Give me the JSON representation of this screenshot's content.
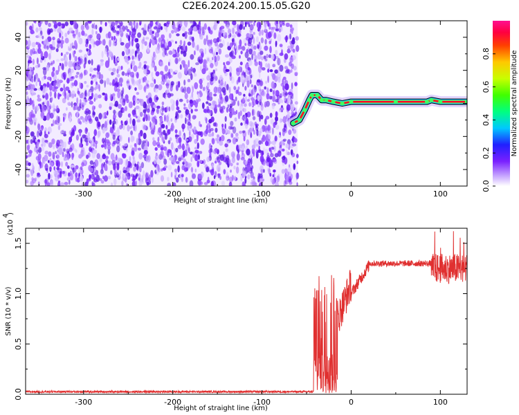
{
  "title": "C2E6.2024.200.15.05.G20",
  "chart_data": [
    {
      "type": "heatmap",
      "name": "spectrogram",
      "xlabel": "Height of straight line (km)",
      "ylabel": "Frequency (Hz)",
      "xlim": [
        -365,
        130
      ],
      "ylim": [
        -50,
        50
      ],
      "xticks": [
        -300,
        -200,
        -100,
        0,
        100
      ],
      "yticks": [
        -40,
        -20,
        0,
        20,
        40
      ],
      "noise_region_x": [
        -365,
        -60
      ],
      "signal_trace": [
        {
          "x": -65,
          "y": -12
        },
        {
          "x": -58,
          "y": -10
        },
        {
          "x": -52,
          "y": -4
        },
        {
          "x": -47,
          "y": 2
        },
        {
          "x": -44,
          "y": 5
        },
        {
          "x": -38,
          "y": 5
        },
        {
          "x": -33,
          "y": 2
        },
        {
          "x": -28,
          "y": 2
        },
        {
          "x": -20,
          "y": 1
        },
        {
          "x": -10,
          "y": 0
        },
        {
          "x": 0,
          "y": 1
        },
        {
          "x": 50,
          "y": 1
        },
        {
          "x": 85,
          "y": 1
        },
        {
          "x": 90,
          "y": 2
        },
        {
          "x": 100,
          "y": 1
        },
        {
          "x": 130,
          "y": 1
        }
      ],
      "colorbar": {
        "label": "Normalized spectral amplitude",
        "range": [
          0,
          1
        ],
        "ticks": [
          "0.0",
          "0.2",
          "0.4",
          "0.6",
          "0.8"
        ]
      },
      "colors": {
        "noise": "#8030ff",
        "trace_core": "#ff0030",
        "trace_edge": "#20c0ff"
      }
    },
    {
      "type": "line",
      "name": "snr",
      "xlabel": "Height of straight line (km)",
      "ylabel": "SNR (10 * v/v)",
      "multiplier_label": "(x10",
      "multiplier_exp": "4",
      "xlim": [
        -365,
        130
      ],
      "ylim": [
        0,
        1.65
      ],
      "xticks": [
        -300,
        -200,
        -100,
        0,
        100
      ],
      "yticks": [
        "0.0",
        "0.5",
        "1.0",
        "1.5"
      ],
      "color": "#e03030",
      "segments": [
        {
          "x_start": -365,
          "x_end": -42,
          "level": 0.025,
          "spread": 0.02
        },
        {
          "x_start": -42,
          "x_end": -15,
          "level": 0.45,
          "spread": 0.9
        },
        {
          "x_start": -15,
          "x_end": 0,
          "level": 0.95,
          "spread": 0.35
        },
        {
          "x_start": 0,
          "x_end": 20,
          "level": 1.12,
          "spread": 0.12
        },
        {
          "x_start": 20,
          "x_end": 90,
          "level": 1.3,
          "spread": 0.06
        },
        {
          "x_start": 90,
          "x_end": 130,
          "level": 1.28,
          "spread": 0.3
        }
      ]
    }
  ]
}
